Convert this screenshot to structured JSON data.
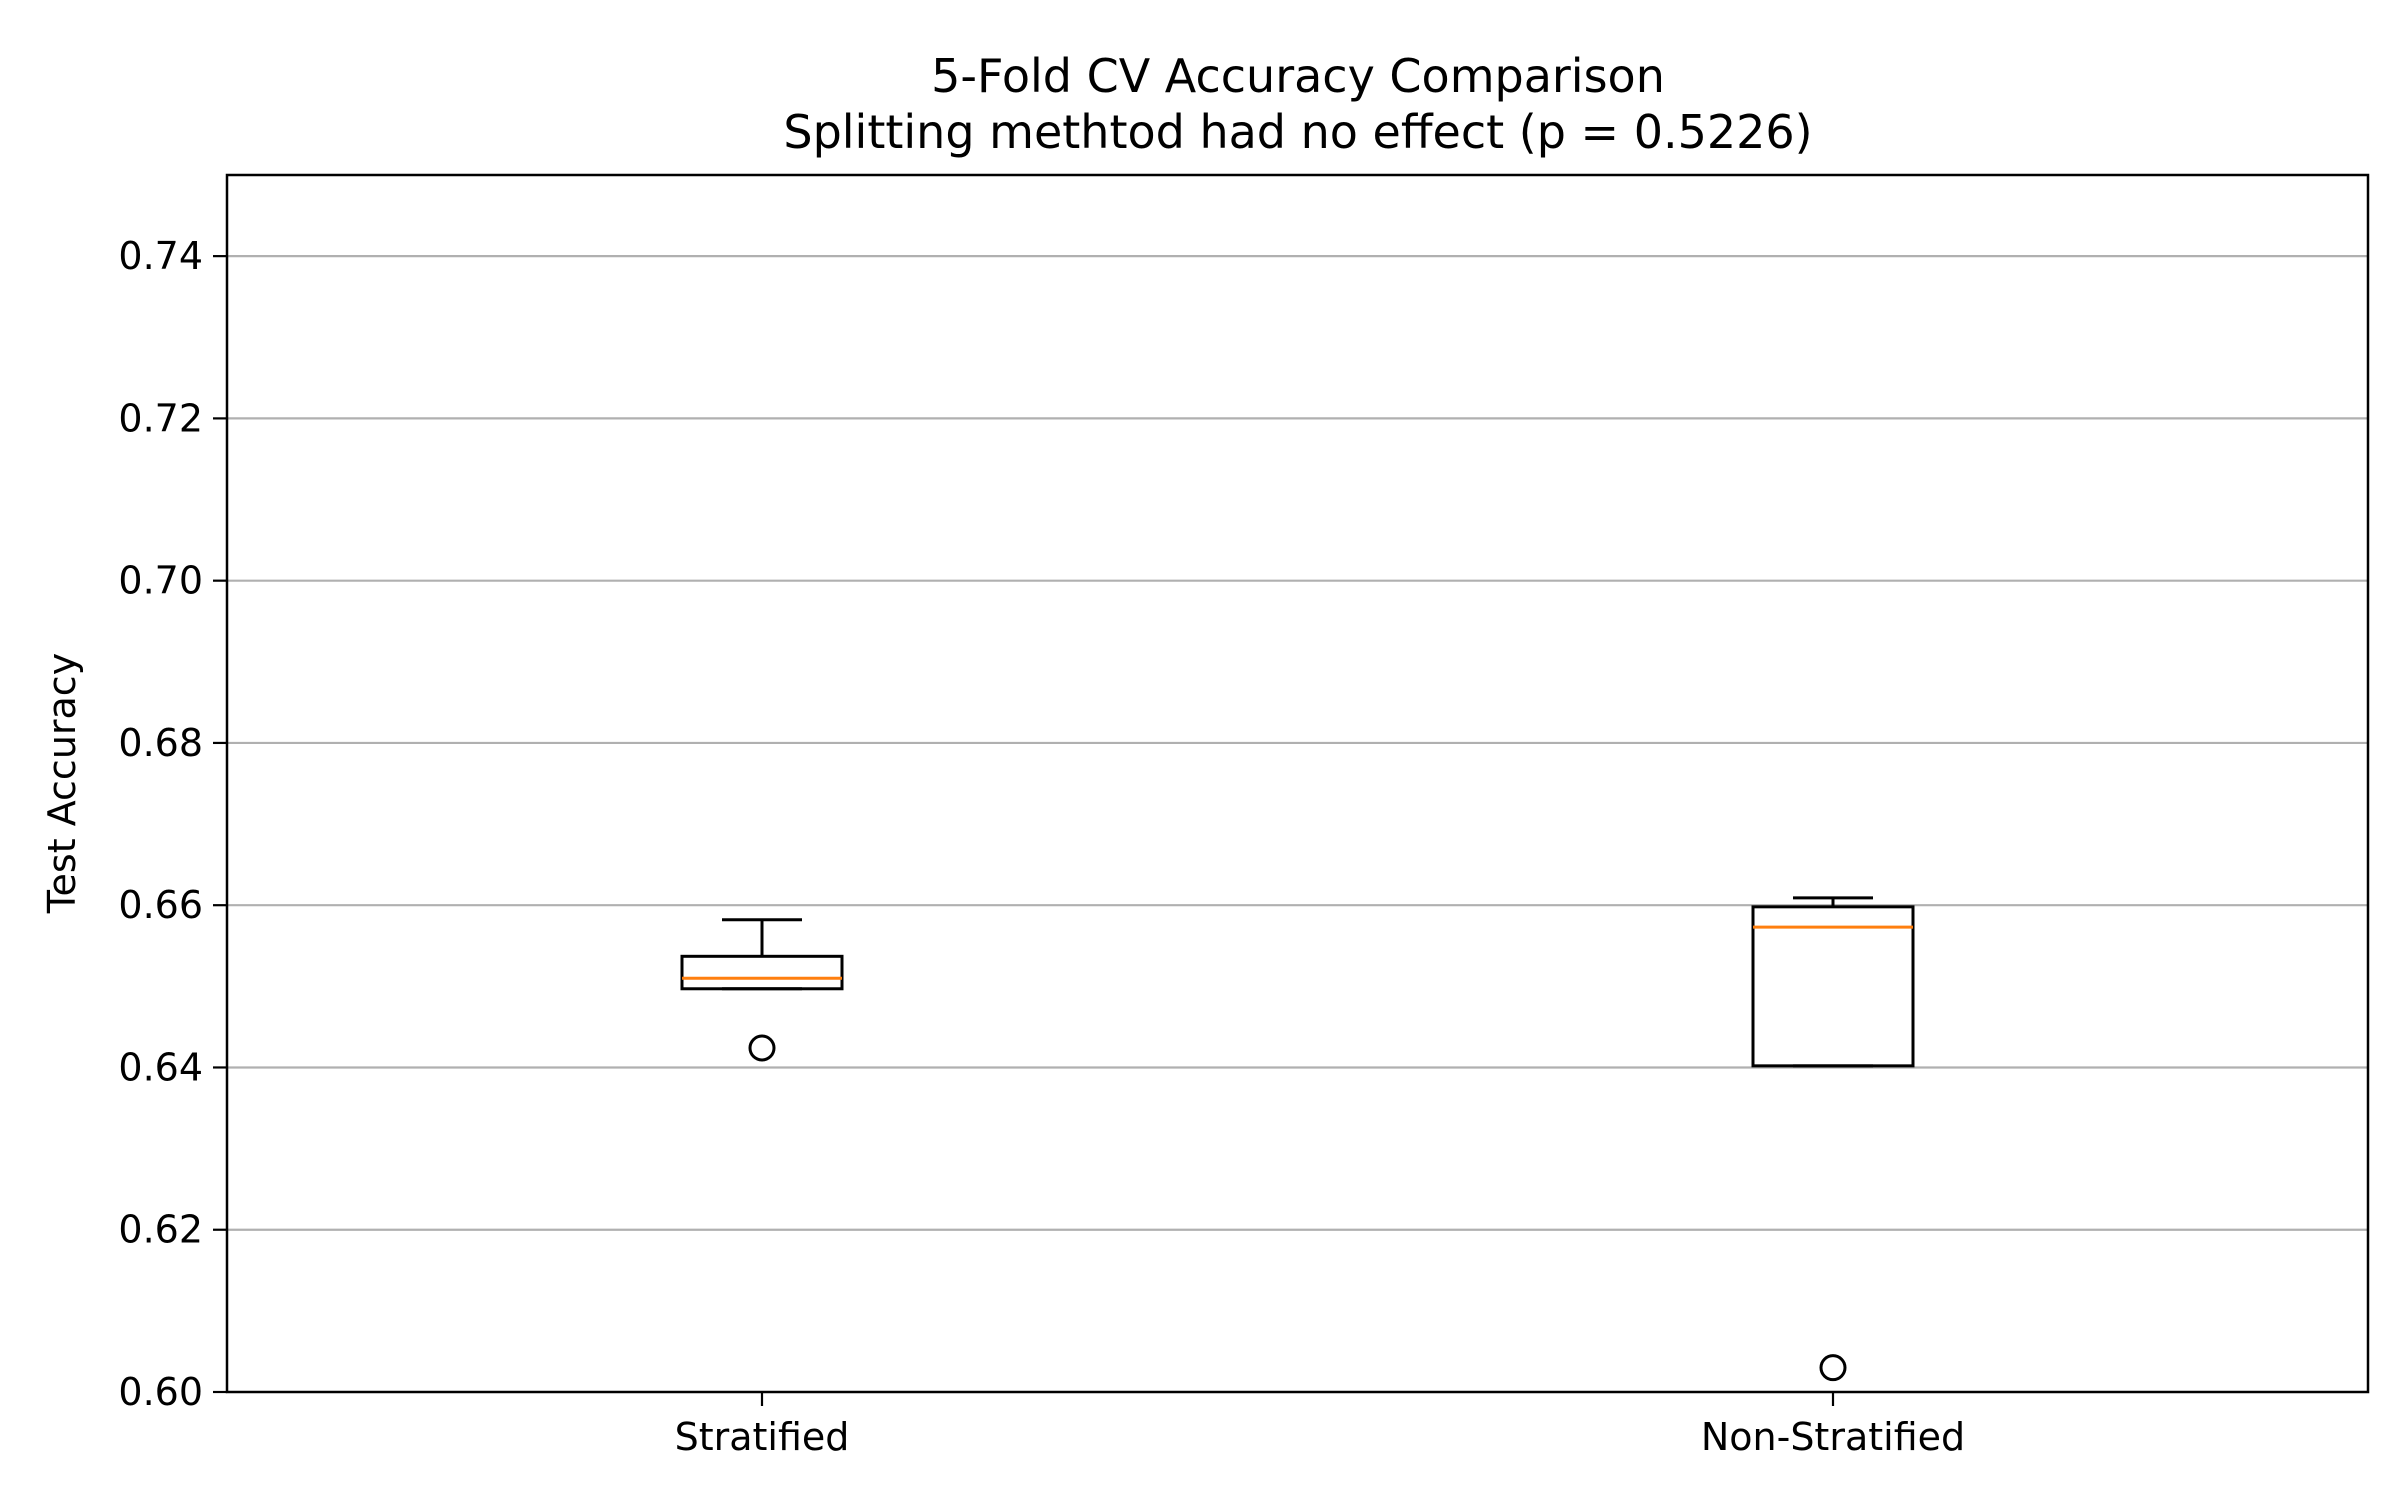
{
  "chart_data": {
    "type": "box",
    "title": "5-Fold CV Accuracy Comparison",
    "subtitle": "Splitting methtod had no effect (p = 0.5226)",
    "xlabel": "",
    "ylabel": "Test Accuracy",
    "ylim": [
      0.6,
      0.75
    ],
    "yticks": [
      0.6,
      0.62,
      0.64,
      0.66,
      0.68,
      0.7,
      0.72,
      0.74
    ],
    "ytick_labels": [
      "0.60",
      "0.62",
      "0.64",
      "0.66",
      "0.68",
      "0.70",
      "0.72",
      "0.74"
    ],
    "grid": "horizontal",
    "categories": [
      "Stratified",
      "Non-Stratified"
    ],
    "boxes": [
      {
        "category": "Stratified",
        "whisker_low": 0.6497,
        "q1": 0.6497,
        "median": 0.651,
        "q3": 0.6537,
        "whisker_high": 0.6582,
        "outliers": [
          0.6424
        ]
      },
      {
        "category": "Non-Stratified",
        "whisker_low": 0.6402,
        "q1": 0.6402,
        "median": 0.6573,
        "q3": 0.6598,
        "whisker_high": 0.6609,
        "outliers": [
          0.603
        ]
      }
    ],
    "colors": {
      "box": "#000000",
      "median": "#ff7f0e",
      "grid": "#b0b0b0"
    }
  }
}
